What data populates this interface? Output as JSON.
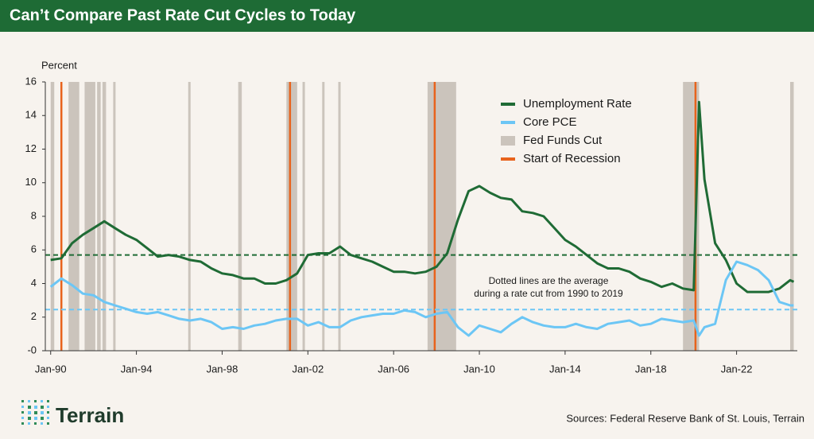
{
  "chart_data": {
    "type": "line",
    "title": "Can’t Compare Past Rate Cut Cycles to Today",
    "y_label": "Percent",
    "ylim": [
      0,
      16
    ],
    "yticks": [
      {
        "value": 0,
        "label": "-0"
      },
      2,
      4,
      6,
      8,
      10,
      12,
      14,
      16
    ],
    "xlim": [
      "1989-10",
      "2024-11"
    ],
    "xticks": [
      {
        "value": "1990-01",
        "label": "Jan-90"
      },
      {
        "value": "1994-01",
        "label": "Jan-94"
      },
      {
        "value": "1998-01",
        "label": "Jan-98"
      },
      {
        "value": "2002-01",
        "label": "Jan-02"
      },
      {
        "value": "2006-01",
        "label": "Jan-06"
      },
      {
        "value": "2010-01",
        "label": "Jan-10"
      },
      {
        "value": "2014-01",
        "label": "Jan-14"
      },
      {
        "value": "2018-01",
        "label": "Jan-18"
      },
      {
        "value": "2022-01",
        "label": "Jan-22"
      }
    ],
    "x": [
      "1990-01",
      "1990-07",
      "1991-01",
      "1991-07",
      "1992-01",
      "1992-07",
      "1993-01",
      "1993-07",
      "1994-01",
      "1994-07",
      "1995-01",
      "1995-07",
      "1996-01",
      "1996-07",
      "1997-01",
      "1997-07",
      "1998-01",
      "1998-07",
      "1999-01",
      "1999-07",
      "2000-01",
      "2000-07",
      "2001-01",
      "2001-07",
      "2002-01",
      "2002-07",
      "2003-01",
      "2003-07",
      "2004-01",
      "2004-07",
      "2005-01",
      "2005-07",
      "2006-01",
      "2006-07",
      "2007-01",
      "2007-07",
      "2008-01",
      "2008-07",
      "2009-01",
      "2009-07",
      "2010-01",
      "2010-07",
      "2011-01",
      "2011-07",
      "2012-01",
      "2012-07",
      "2013-01",
      "2013-07",
      "2014-01",
      "2014-07",
      "2015-01",
      "2015-07",
      "2016-01",
      "2016-07",
      "2017-01",
      "2017-07",
      "2018-01",
      "2018-07",
      "2019-01",
      "2019-07",
      "2020-01",
      "2020-04",
      "2020-07",
      "2021-01",
      "2021-07",
      "2022-01",
      "2022-07",
      "2023-01",
      "2023-07",
      "2024-01",
      "2024-07",
      "2024-09"
    ],
    "series": [
      {
        "name": "Unemployment Rate",
        "color": "#1f6b35",
        "values": [
          5.4,
          5.5,
          6.4,
          6.9,
          7.3,
          7.7,
          7.3,
          6.9,
          6.6,
          6.1,
          5.6,
          5.7,
          5.6,
          5.4,
          5.3,
          4.9,
          4.6,
          4.5,
          4.3,
          4.3,
          4.0,
          4.0,
          4.2,
          4.6,
          5.7,
          5.8,
          5.8,
          6.2,
          5.7,
          5.5,
          5.3,
          5.0,
          4.7,
          4.7,
          4.6,
          4.7,
          5.0,
          5.8,
          7.8,
          9.5,
          9.8,
          9.4,
          9.1,
          9.0,
          8.3,
          8.2,
          8.0,
          7.3,
          6.6,
          6.2,
          5.7,
          5.2,
          4.9,
          4.9,
          4.7,
          4.3,
          4.1,
          3.8,
          4.0,
          3.7,
          3.6,
          14.8,
          10.2,
          6.4,
          5.4,
          4.0,
          3.5,
          3.5,
          3.5,
          3.7,
          4.2,
          4.1
        ]
      },
      {
        "name": "Core PCE",
        "color": "#6cc6f5",
        "values": [
          3.8,
          4.3,
          3.9,
          3.4,
          3.3,
          2.9,
          2.7,
          2.5,
          2.3,
          2.2,
          2.3,
          2.1,
          1.9,
          1.8,
          1.9,
          1.7,
          1.3,
          1.4,
          1.3,
          1.5,
          1.6,
          1.8,
          1.9,
          1.9,
          1.5,
          1.7,
          1.4,
          1.4,
          1.8,
          2.0,
          2.1,
          2.2,
          2.2,
          2.4,
          2.3,
          2.0,
          2.2,
          2.3,
          1.4,
          0.9,
          1.5,
          1.3,
          1.1,
          1.6,
          2.0,
          1.7,
          1.5,
          1.4,
          1.4,
          1.6,
          1.4,
          1.3,
          1.6,
          1.7,
          1.8,
          1.5,
          1.6,
          1.9,
          1.8,
          1.7,
          1.8,
          0.9,
          1.4,
          1.6,
          4.2,
          5.3,
          5.1,
          4.8,
          4.2,
          2.9,
          2.7,
          2.7
        ]
      }
    ],
    "cut_periods": {
      "name": "Fed Funds Cut",
      "color": "#cbc4bc",
      "periods": [
        {
          "start": "1990-01",
          "end": "1990-03"
        },
        {
          "start": "1990-11",
          "end": "1991-05"
        },
        {
          "start": "1991-08",
          "end": "1992-02"
        },
        {
          "start": "1992-03",
          "end": "1992-05"
        },
        {
          "start": "1992-06",
          "end": "1992-08"
        },
        {
          "start": "1992-12",
          "end": "1993-01"
        },
        {
          "start": "1996-06",
          "end": "1996-07"
        },
        {
          "start": "1998-10",
          "end": "1998-12"
        },
        {
          "start": "2001-01",
          "end": "2001-07"
        },
        {
          "start": "2001-10",
          "end": "2001-11"
        },
        {
          "start": "2002-09",
          "end": "2002-10"
        },
        {
          "start": "2003-06",
          "end": "2003-07"
        },
        {
          "start": "2007-08",
          "end": "2008-12"
        },
        {
          "start": "2019-07",
          "end": "2020-01"
        },
        {
          "start": "2020-01",
          "end": "2020-04"
        },
        {
          "start": "2024-07",
          "end": "2024-09"
        }
      ]
    },
    "recessions": {
      "name": "Start of Recession",
      "color": "#e8631c",
      "dates": [
        "1990-07",
        "2001-03",
        "2007-12",
        "2020-02"
      ]
    },
    "averages": [
      {
        "value": 5.7,
        "color": "#1f6b35"
      },
      {
        "value": 2.45,
        "color": "#6cc6f5"
      }
    ],
    "annotation": [
      "Dotted lines are the average",
      "during a rate cut from 1990 to 2019"
    ],
    "source": "Sources: Federal Reserve Bank of St. Louis, Terrain",
    "logo": "Terrain"
  }
}
